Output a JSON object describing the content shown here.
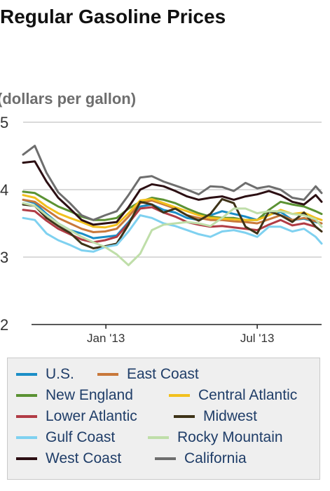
{
  "chart_data": {
    "type": "line",
    "title": "Regular Gasoline Prices",
    "ylabel": "(dollars per gallon)",
    "ylim": [
      2,
      5
    ],
    "yticks": [
      2,
      3,
      4,
      5
    ],
    "xlim": [
      "2012-09-24",
      "2013-09-16"
    ],
    "xticks": [
      {
        "date": "2013-01-01",
        "label": "Jan '13"
      },
      {
        "date": "2013-07-01",
        "label": "Jul '13"
      }
    ],
    "grid": true,
    "legend_position": "bottom",
    "x": [
      "2012-09-24",
      "2012-10-08",
      "2012-10-22",
      "2012-11-05",
      "2012-11-19",
      "2012-12-03",
      "2012-12-17",
      "2012-12-31",
      "2013-01-14",
      "2013-01-28",
      "2013-02-11",
      "2013-02-25",
      "2013-03-11",
      "2013-03-25",
      "2013-04-08",
      "2013-04-22",
      "2013-05-06",
      "2013-05-20",
      "2013-06-03",
      "2013-06-17",
      "2013-07-01",
      "2013-07-15",
      "2013-07-29",
      "2013-08-12",
      "2013-08-26",
      "2013-09-09",
      "2013-09-16"
    ],
    "series": [
      {
        "name": "U.S.",
        "color": "#1b8ec7",
        "values": [
          3.85,
          3.8,
          3.64,
          3.5,
          3.4,
          3.35,
          3.28,
          3.3,
          3.32,
          3.52,
          3.75,
          3.78,
          3.7,
          3.66,
          3.58,
          3.55,
          3.62,
          3.68,
          3.64,
          3.6,
          3.55,
          3.63,
          3.67,
          3.55,
          3.57,
          3.52,
          3.5
        ]
      },
      {
        "name": "East Coast",
        "color": "#c8783a",
        "values": [
          3.85,
          3.82,
          3.7,
          3.58,
          3.5,
          3.42,
          3.37,
          3.38,
          3.42,
          3.6,
          3.8,
          3.84,
          3.78,
          3.72,
          3.62,
          3.58,
          3.55,
          3.55,
          3.53,
          3.52,
          3.5,
          3.56,
          3.62,
          3.55,
          3.58,
          3.53,
          3.5
        ]
      },
      {
        "name": "New England",
        "color": "#5b9233",
        "values": [
          3.97,
          3.95,
          3.85,
          3.75,
          3.68,
          3.6,
          3.55,
          3.55,
          3.58,
          3.72,
          3.82,
          3.88,
          3.85,
          3.8,
          3.72,
          3.65,
          3.6,
          3.58,
          3.58,
          3.55,
          3.55,
          3.7,
          3.82,
          3.78,
          3.75,
          3.68,
          3.64
        ]
      },
      {
        "name": "Central Atlantic",
        "color": "#f2c01d",
        "values": [
          3.92,
          3.88,
          3.75,
          3.65,
          3.58,
          3.52,
          3.45,
          3.44,
          3.48,
          3.65,
          3.84,
          3.86,
          3.8,
          3.74,
          3.68,
          3.62,
          3.58,
          3.57,
          3.56,
          3.55,
          3.55,
          3.62,
          3.7,
          3.64,
          3.66,
          3.58,
          3.55
        ]
      },
      {
        "name": "Lower Atlantic",
        "color": "#b13c45",
        "values": [
          3.7,
          3.68,
          3.54,
          3.42,
          3.34,
          3.26,
          3.22,
          3.25,
          3.3,
          3.5,
          3.72,
          3.74,
          3.66,
          3.6,
          3.52,
          3.48,
          3.45,
          3.46,
          3.44,
          3.42,
          3.4,
          3.48,
          3.55,
          3.47,
          3.5,
          3.45,
          3.38
        ]
      },
      {
        "name": "Midwest",
        "color": "#3e3318",
        "values": [
          3.78,
          3.76,
          3.58,
          3.46,
          3.36,
          3.2,
          3.13,
          3.16,
          3.2,
          3.48,
          3.82,
          3.78,
          3.66,
          3.72,
          3.62,
          3.54,
          3.64,
          3.86,
          3.8,
          3.45,
          3.35,
          3.68,
          3.62,
          3.52,
          3.66,
          3.45,
          3.38
        ]
      },
      {
        "name": "Gulf Coast",
        "color": "#7fd1f0",
        "values": [
          3.58,
          3.55,
          3.35,
          3.25,
          3.18,
          3.1,
          3.08,
          3.15,
          3.18,
          3.38,
          3.62,
          3.58,
          3.5,
          3.46,
          3.4,
          3.34,
          3.3,
          3.38,
          3.4,
          3.36,
          3.3,
          3.45,
          3.45,
          3.38,
          3.42,
          3.3,
          3.2
        ]
      },
      {
        "name": "Rocky Mountain",
        "color": "#bfdea9",
        "values": [
          3.8,
          3.76,
          3.62,
          3.5,
          3.4,
          3.3,
          3.22,
          3.15,
          3.04,
          2.88,
          3.05,
          3.4,
          3.48,
          3.5,
          3.52,
          3.5,
          3.46,
          3.58,
          3.72,
          3.72,
          3.65,
          3.68,
          3.68,
          3.64,
          3.62,
          3.56,
          3.45
        ]
      },
      {
        "name": "West Coast",
        "color": "#2c0f13",
        "values": [
          4.4,
          4.42,
          4.12,
          3.88,
          3.72,
          3.55,
          3.48,
          3.5,
          3.52,
          3.74,
          4.0,
          4.08,
          4.05,
          3.98,
          3.9,
          3.85,
          3.88,
          3.9,
          3.85,
          3.9,
          3.93,
          3.98,
          3.92,
          3.82,
          3.78,
          3.92,
          3.82
        ]
      },
      {
        "name": "California",
        "color": "#6e6e6e",
        "values": [
          4.52,
          4.65,
          4.25,
          3.96,
          3.8,
          3.62,
          3.55,
          3.62,
          3.68,
          3.92,
          4.18,
          4.2,
          4.12,
          4.06,
          4.0,
          3.93,
          4.05,
          4.04,
          3.98,
          4.1,
          4.02,
          4.05,
          4.0,
          3.88,
          3.85,
          4.05,
          3.95
        ]
      }
    ]
  }
}
